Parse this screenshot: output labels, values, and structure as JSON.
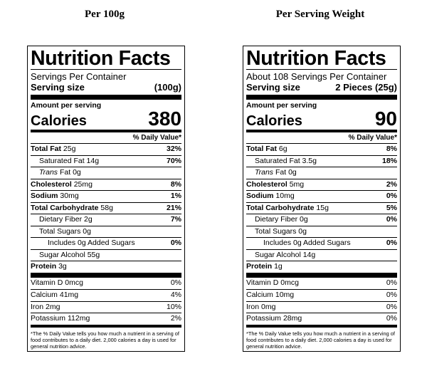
{
  "columns": [
    {
      "heading": "Per 100g",
      "title": "Nutrition Facts",
      "servings": "Servings Per Container",
      "serving_size_label": "Serving size",
      "serving_size_value": "(100g)",
      "amount_per_serving": "Amount per serving",
      "calories_label": "Calories",
      "calories_value": "380",
      "dv_header": "% Daily Value*",
      "rows": {
        "total_fat": {
          "name": "Total Fat",
          "amount": "25g",
          "pct": "32%"
        },
        "saturated_fat": {
          "name": "Saturated Fat",
          "amount": "14g",
          "pct": "70%"
        },
        "trans_fat": {
          "name": "Trans",
          "suffix": "Fat",
          "amount": "0g"
        },
        "cholesterol": {
          "name": "Cholesterol",
          "amount": "25mg",
          "pct": "8%"
        },
        "sodium": {
          "name": "Sodium",
          "amount": "30mg",
          "pct": "1%"
        },
        "total_carb": {
          "name": "Total Carbohydrate",
          "amount": "58g",
          "pct": "21%"
        },
        "dietary_fiber": {
          "name": "Dietary Fiber",
          "amount": "2g",
          "pct": "7%"
        },
        "total_sugars": {
          "name": "Total Sugars",
          "amount": "0g"
        },
        "added_sugars": {
          "name": "Includes 0g Added Sugars",
          "pct": "0%"
        },
        "sugar_alcohol": {
          "name": "Sugar Alcohol",
          "amount": "55g"
        },
        "protein": {
          "name": "Protein",
          "amount": "3g"
        }
      },
      "vitamins": [
        {
          "name": "Vitamin D",
          "amount": "0mcg",
          "pct": "0%"
        },
        {
          "name": "Calcium",
          "amount": "41mg",
          "pct": "4%"
        },
        {
          "name": "Iron",
          "amount": "2mg",
          "pct": "10%"
        },
        {
          "name": "Potassium",
          "amount": "112mg",
          "pct": "2%"
        }
      ],
      "footnote": "*The % Daily Value tells you how much a nutrient in a serving of food contributes to a daily diet. 2,000 calories a day is used for general nutrition advice."
    },
    {
      "heading": "Per Serving Weight",
      "title": "Nutrition Facts",
      "servings": "About 108 Servings Per Container",
      "serving_size_label": "Serving size",
      "serving_size_value": "2 Pieces (25g)",
      "amount_per_serving": "Amount per serving",
      "calories_label": "Calories",
      "calories_value": "90",
      "dv_header": "% Daily Value*",
      "rows": {
        "total_fat": {
          "name": "Total Fat",
          "amount": "6g",
          "pct": "8%"
        },
        "saturated_fat": {
          "name": "Saturated Fat",
          "amount": "3.5g",
          "pct": "18%"
        },
        "trans_fat": {
          "name": "Trans",
          "suffix": "Fat",
          "amount": "0g"
        },
        "cholesterol": {
          "name": "Cholesterol",
          "amount": "5mg",
          "pct": "2%"
        },
        "sodium": {
          "name": "Sodium",
          "amount": "10mg",
          "pct": "0%"
        },
        "total_carb": {
          "name": "Total Carbohydrate",
          "amount": "15g",
          "pct": "5%"
        },
        "dietary_fiber": {
          "name": "Dietary Fiber",
          "amount": "0g",
          "pct": "0%"
        },
        "total_sugars": {
          "name": "Total Sugars",
          "amount": "0g"
        },
        "added_sugars": {
          "name": "Includes 0g Added Sugars",
          "pct": "0%"
        },
        "sugar_alcohol": {
          "name": "Sugar Alcohol",
          "amount": "14g"
        },
        "protein": {
          "name": "Protein",
          "amount": "1g"
        }
      },
      "vitamins": [
        {
          "name": "Vitamin D",
          "amount": "0mcg",
          "pct": "0%"
        },
        {
          "name": "Calcium",
          "amount": "10mg",
          "pct": "0%"
        },
        {
          "name": "Iron",
          "amount": "0mg",
          "pct": "0%"
        },
        {
          "name": "Potassium",
          "amount": "28mg",
          "pct": "0%"
        }
      ],
      "footnote": "*The % Daily Value tells you how much a nutrient in a serving of food contributes to a daily diet. 2,000 calories a day is used for general nutrition advice."
    }
  ]
}
